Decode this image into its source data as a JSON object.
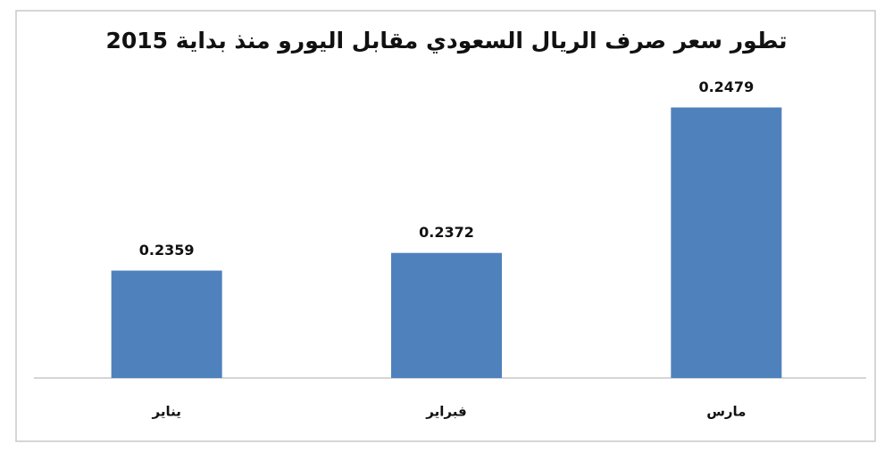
{
  "chart_data": {
    "type": "bar",
    "title": "تطور سعر صرف الريال السعودي مقابل اليورو منذ بداية 2015",
    "categories": [
      "يناير",
      "فبراير",
      "مارس"
    ],
    "values": [
      0.2359,
      0.2372,
      0.2479
    ],
    "color": "#4f81bd",
    "ylim": [
      0.228,
      0.25
    ]
  }
}
